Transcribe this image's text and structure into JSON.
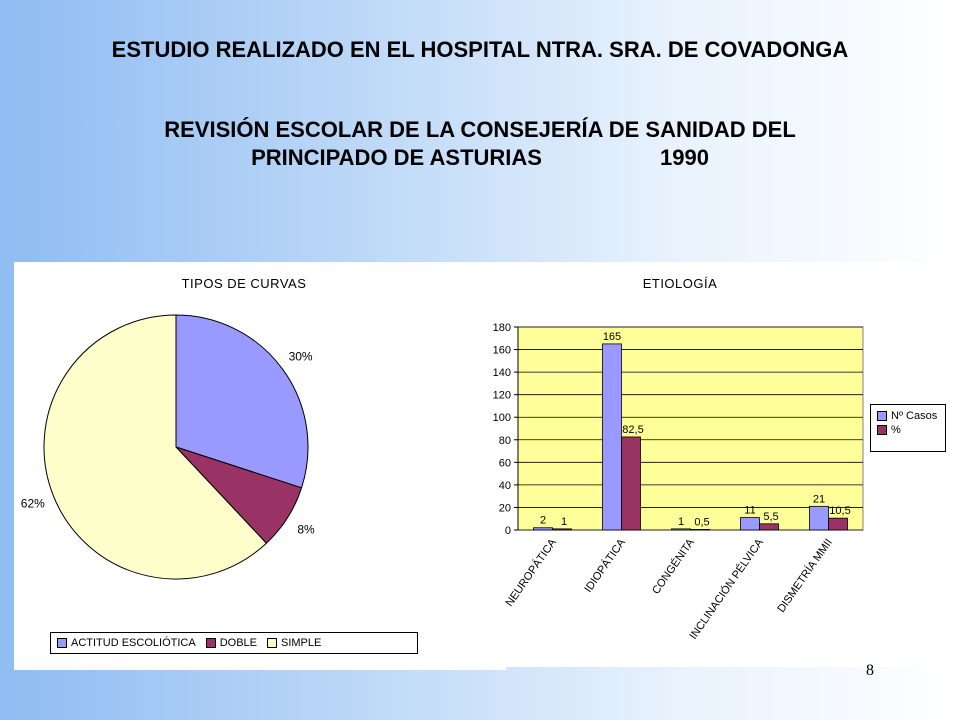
{
  "title_line1": "ESTUDIO REALIZADO EN EL HOSPITAL NTRA. SRA. DE COVADONGA",
  "title_line2a": "REVISIÓN ESCOLAR DE LA CONSEJERÍA DE SANIDAD DEL",
  "title_line2b": "PRINCIPADO DE ASTURIAS",
  "title_year": "1990",
  "page_number": "8",
  "colors": {
    "slate_blue": "#9999ff",
    "maroon": "#993366",
    "light_yellow": "#ffffcc",
    "plot_bg": "#ffff99"
  },
  "chart_data": [
    {
      "type": "pie",
      "title": "TIPOS DE CURVAS",
      "categories": [
        "ACTITUD ESCOLIÓTICA",
        "DOBLE",
        "SIMPLE"
      ],
      "values": [
        30,
        8,
        62
      ],
      "labels": [
        "30%",
        "8%",
        "62%"
      ],
      "colors": [
        "#9999ff",
        "#993366",
        "#ffffcc"
      ],
      "legend": "bottom"
    },
    {
      "type": "bar",
      "title": "ETIOLOGÍA",
      "categories": [
        "NEUROPÁTICA",
        "IDIOPÁTICA",
        "CONGÉNITA",
        "INCLINACIÓN PÉLVICA",
        "DISMETRÍA MMII"
      ],
      "series": [
        {
          "name": "Nº Casos",
          "values": [
            2,
            165,
            1,
            11,
            21
          ],
          "labels": [
            "2",
            "165",
            "1",
            "11",
            "21"
          ],
          "color": "#9999ff"
        },
        {
          "name": "%",
          "values": [
            1,
            82.5,
            0.5,
            5.5,
            10.5
          ],
          "labels": [
            "1",
            "82,5",
            "0,5",
            "5,5",
            "10,5"
          ],
          "color": "#993366"
        }
      ],
      "ylim": [
        0,
        180
      ],
      "yticks": [
        "0",
        "20",
        "40",
        "60",
        "80",
        "100",
        "120",
        "140",
        "160",
        "180"
      ],
      "grid": true,
      "legend": "right"
    }
  ]
}
